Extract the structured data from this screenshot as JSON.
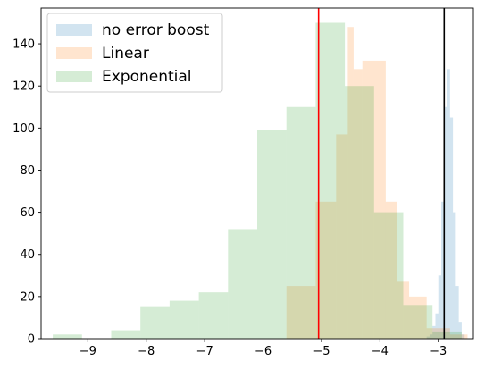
{
  "chart_data": {
    "type": "histogram",
    "title": "",
    "xlabel": "",
    "ylabel": "",
    "xlim": [
      -9.8,
      -2.4
    ],
    "ylim": [
      0,
      157
    ],
    "x_ticks": [
      -9,
      -8,
      -7,
      -6,
      -5,
      -4,
      -3
    ],
    "y_ticks": [
      0,
      20,
      40,
      60,
      80,
      100,
      120,
      140
    ],
    "grid": false,
    "legend_placement": "upper-left",
    "bin_width": 0.5,
    "series": [
      {
        "name": "no error boost",
        "color": "#1f77b4",
        "alpha": 0.2,
        "bins": [
          [
            -3.2,
            -3.15,
            1
          ],
          [
            -3.15,
            -3.1,
            2
          ],
          [
            -3.1,
            -3.05,
            6
          ],
          [
            -3.05,
            -3.0,
            12
          ],
          [
            -3.0,
            -2.95,
            30
          ],
          [
            -2.95,
            -2.9,
            65
          ],
          [
            -2.9,
            -2.85,
            110
          ],
          [
            -2.85,
            -2.8,
            128
          ],
          [
            -2.8,
            -2.75,
            105
          ],
          [
            -2.75,
            -2.7,
            60
          ],
          [
            -2.7,
            -2.65,
            25
          ],
          [
            -2.65,
            -2.6,
            8
          ],
          [
            -2.6,
            -2.55,
            2
          ]
        ]
      },
      {
        "name": "Linear",
        "color": "#ff7f0e",
        "alpha": 0.2,
        "bins": [
          [
            -5.6,
            -5.1,
            25
          ],
          [
            -5.1,
            -4.75,
            65
          ],
          [
            -4.75,
            -4.55,
            97
          ],
          [
            -4.55,
            -4.45,
            148
          ],
          [
            -4.45,
            -4.3,
            128
          ],
          [
            -4.3,
            -3.9,
            132
          ],
          [
            -3.9,
            -3.7,
            65
          ],
          [
            -3.7,
            -3.5,
            27
          ],
          [
            -3.5,
            -3.2,
            20
          ],
          [
            -3.2,
            -2.8,
            5
          ],
          [
            -2.8,
            -2.5,
            2
          ]
        ]
      },
      {
        "name": "Exponential",
        "color": "#2ca02c",
        "alpha": 0.2,
        "bins": [
          [
            -9.6,
            -9.1,
            2
          ],
          [
            -8.6,
            -8.1,
            4
          ],
          [
            -8.1,
            -7.6,
            15
          ],
          [
            -7.6,
            -7.1,
            18
          ],
          [
            -7.1,
            -6.6,
            22
          ],
          [
            -6.6,
            -6.1,
            52
          ],
          [
            -6.1,
            -5.6,
            99
          ],
          [
            -5.6,
            -5.1,
            110
          ],
          [
            -5.1,
            -4.6,
            150
          ],
          [
            -4.6,
            -4.1,
            120
          ],
          [
            -4.1,
            -3.6,
            60
          ],
          [
            -3.6,
            -3.1,
            16
          ],
          [
            -3.1,
            -2.6,
            3
          ]
        ]
      }
    ],
    "vlines": [
      {
        "x": -5.05,
        "color": "#ff0000"
      },
      {
        "x": -2.9,
        "color": "#000000"
      }
    ]
  }
}
